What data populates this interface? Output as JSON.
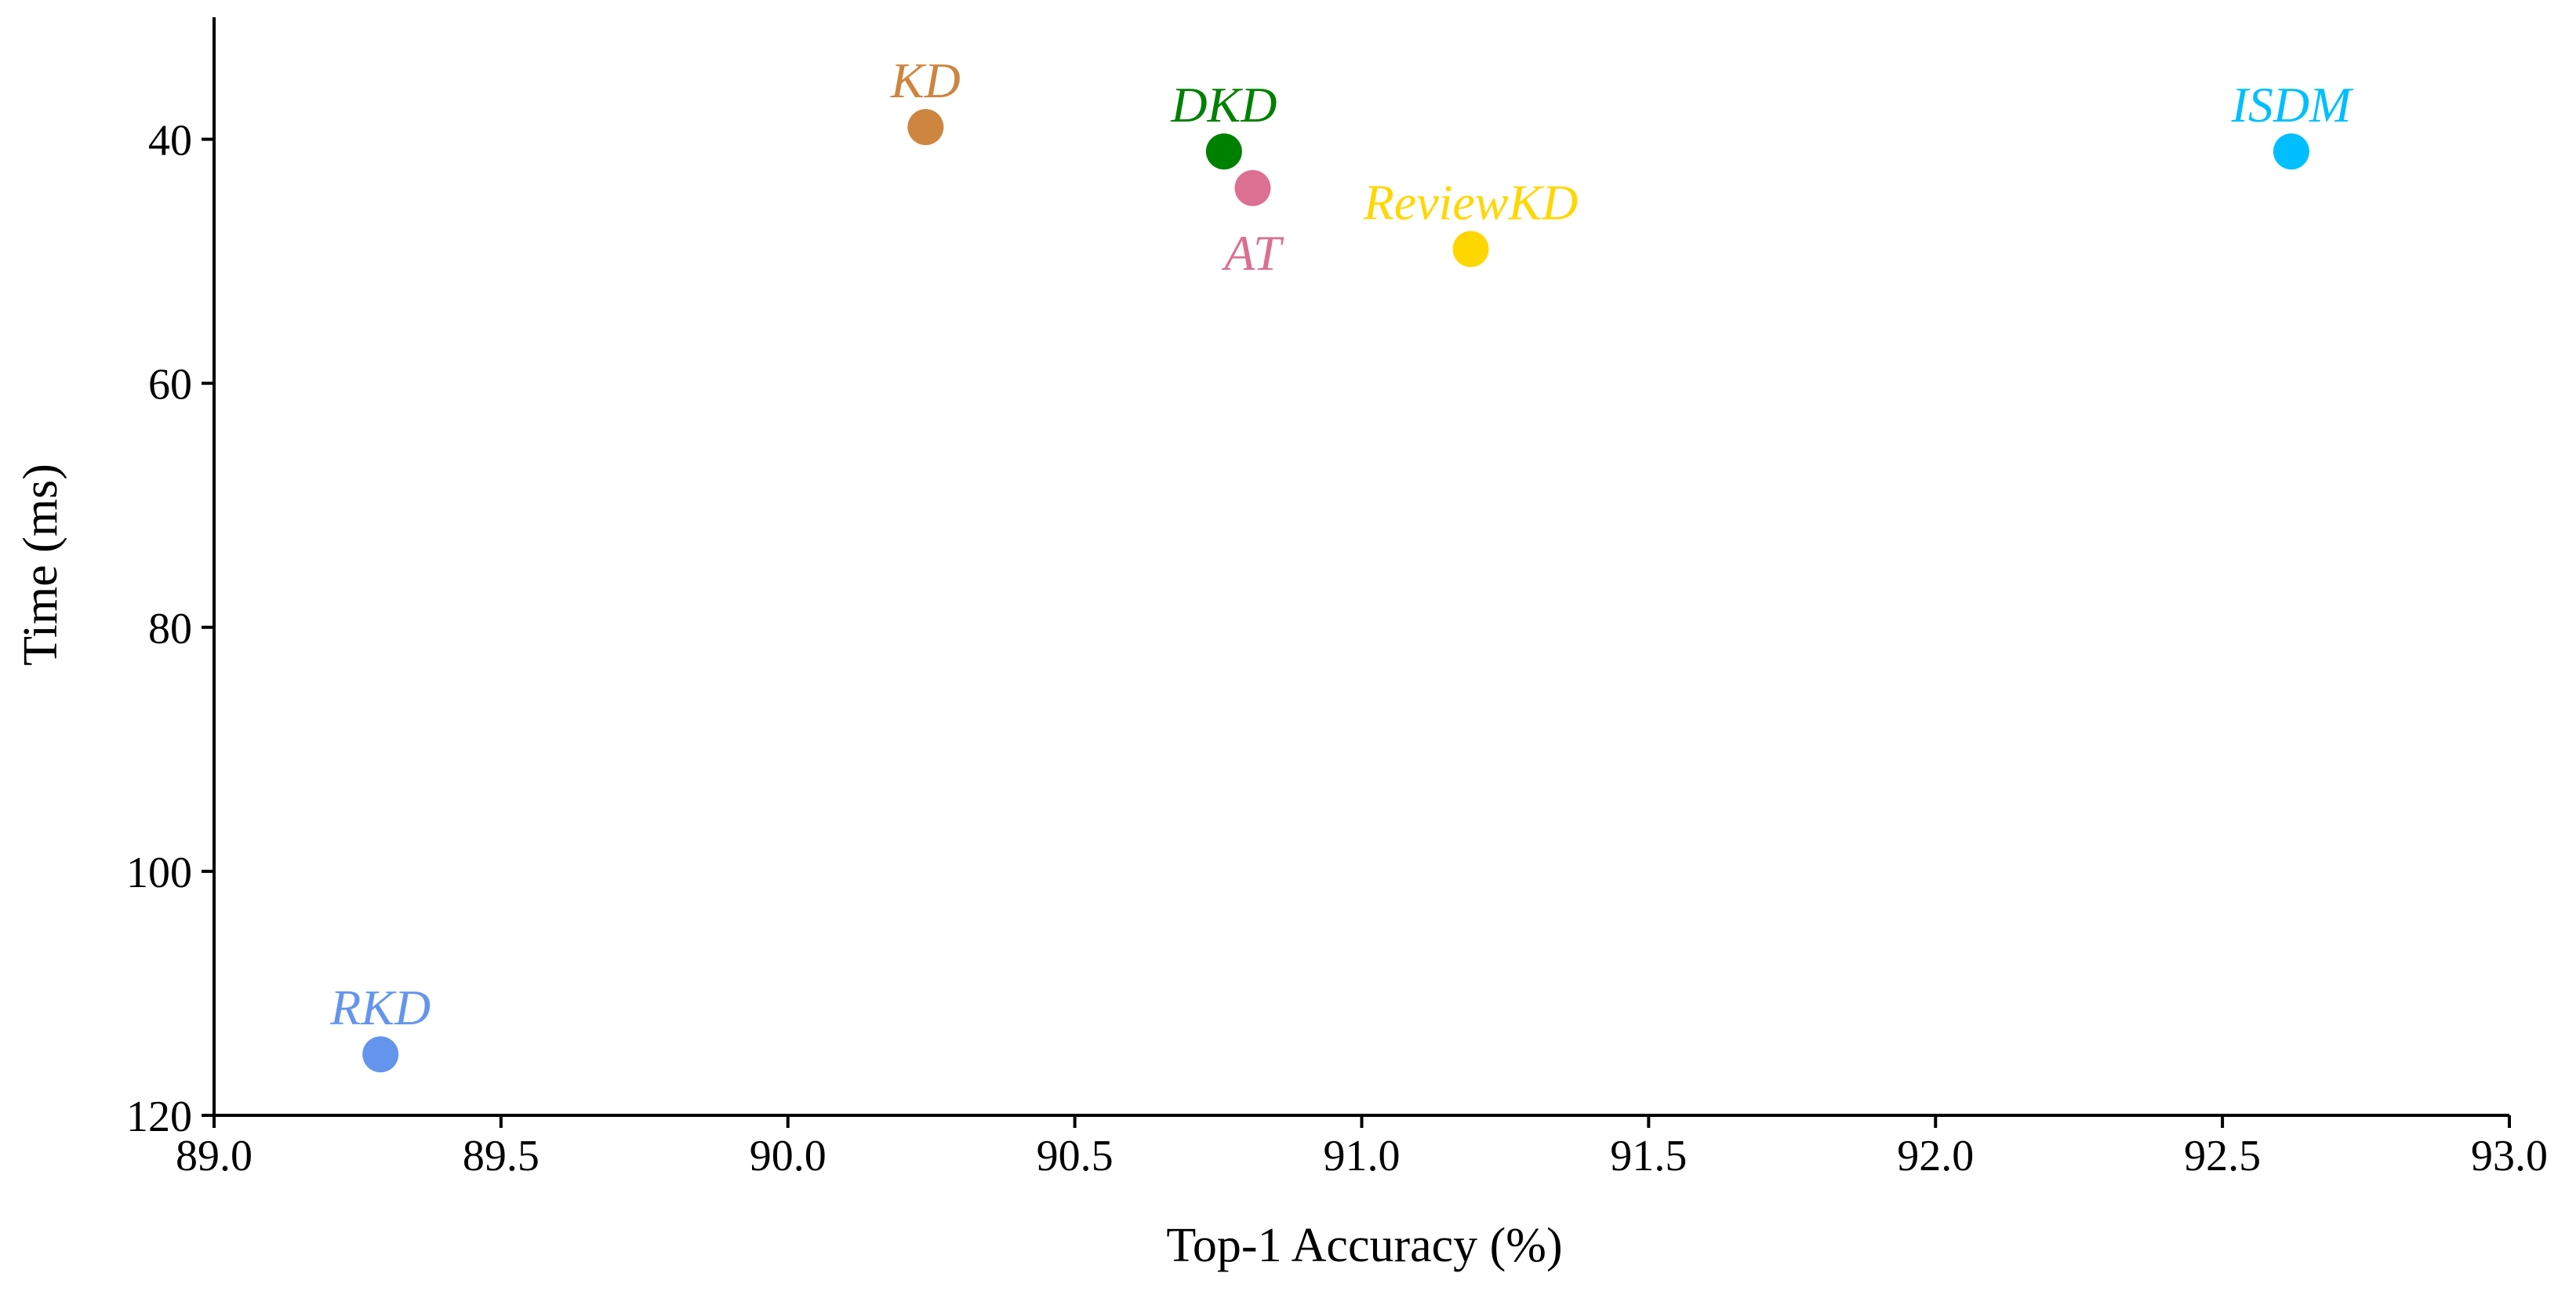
{
  "chart_data": {
    "type": "scatter",
    "title": "",
    "xlabel": "Top-1 Accuracy (%)",
    "ylabel": "Time (ms)",
    "xlim": [
      89.0,
      93.0
    ],
    "ylim": [
      30,
      120
    ],
    "y_inverted": true,
    "grid": false,
    "x_ticks": [
      "89.0",
      "89.5",
      "90.0",
      "90.5",
      "91.0",
      "91.5",
      "92.0",
      "92.5",
      "93.0"
    ],
    "y_ticks": [
      "40",
      "60",
      "80",
      "100",
      "120"
    ],
    "points": [
      {
        "name": "KD",
        "x": 90.24,
        "y": 39,
        "color": "#CD853F",
        "label_pos": "above"
      },
      {
        "name": "DKD",
        "x": 90.76,
        "y": 41,
        "color": "#008000",
        "label_pos": "above"
      },
      {
        "name": "AT",
        "x": 90.81,
        "y": 44,
        "color": "#DB7093",
        "label_pos": "below"
      },
      {
        "name": "ReviewKD",
        "x": 91.19,
        "y": 49,
        "color": "#FFD700",
        "label_pos": "above"
      },
      {
        "name": "ISDM",
        "x": 92.62,
        "y": 41,
        "color": "#00BFFF",
        "label_pos": "above"
      },
      {
        "name": "RKD",
        "x": 89.29,
        "y": 115,
        "color": "#6495ED",
        "label_pos": "above"
      }
    ]
  }
}
